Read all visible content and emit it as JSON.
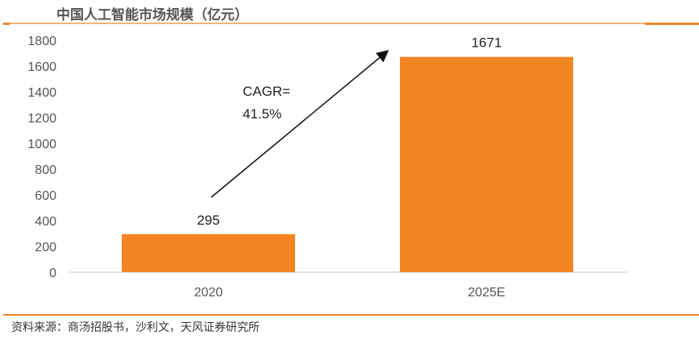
{
  "title": "中国人工智能市场规模（亿元）",
  "source": "资料来源：商汤招股书，沙利文，天风证券研究所",
  "chart_data": {
    "type": "bar",
    "title": "中国人工智能市场规模（亿元）",
    "categories": [
      "2020",
      "2025E"
    ],
    "values": [
      295,
      1671
    ],
    "data_labels": [
      "295",
      "1671"
    ],
    "ylim": [
      0,
      1800
    ],
    "yticks": [
      "0",
      "200",
      "400",
      "600",
      "800",
      "1000",
      "1200",
      "1400",
      "1600",
      "1800"
    ],
    "grid": false,
    "bar_color": "#f28424",
    "annotation": {
      "line1": "CAGR=",
      "line2": "41.5%"
    }
  }
}
